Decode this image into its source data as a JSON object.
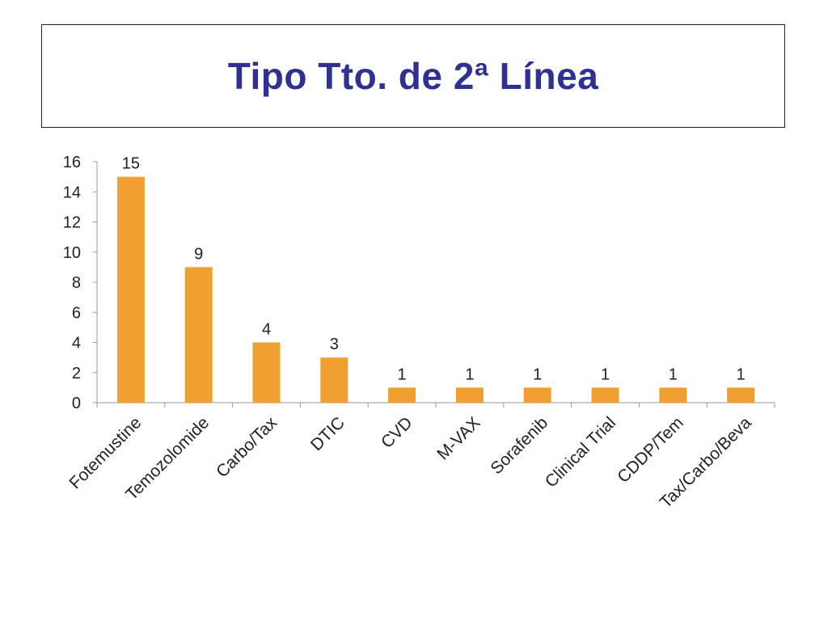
{
  "slide": {
    "title": "Tipo Tto. de 2ª Línea"
  },
  "colors": {
    "bar": "#F0A030",
    "title": "#2E3192",
    "axis": "#999999",
    "text": "#222222"
  },
  "chart_data": {
    "type": "bar",
    "title": "",
    "xlabel": "",
    "ylabel": "",
    "categories": [
      "Fotemustine",
      "Temozolomide",
      "Carbo/Tax",
      "DTIC",
      "CVD",
      "M-VAX",
      "Sorafenib",
      "Clinical Trial",
      "CDDP/Tem",
      "Tax/Carbo/Beva"
    ],
    "values": [
      15,
      9,
      4,
      3,
      1,
      1,
      1,
      1,
      1,
      1
    ],
    "ylim": [
      0,
      16
    ],
    "yticks": [
      0,
      2,
      4,
      6,
      8,
      10,
      12,
      14,
      16
    ],
    "data_labels": true,
    "grid": false,
    "legend": "none"
  }
}
